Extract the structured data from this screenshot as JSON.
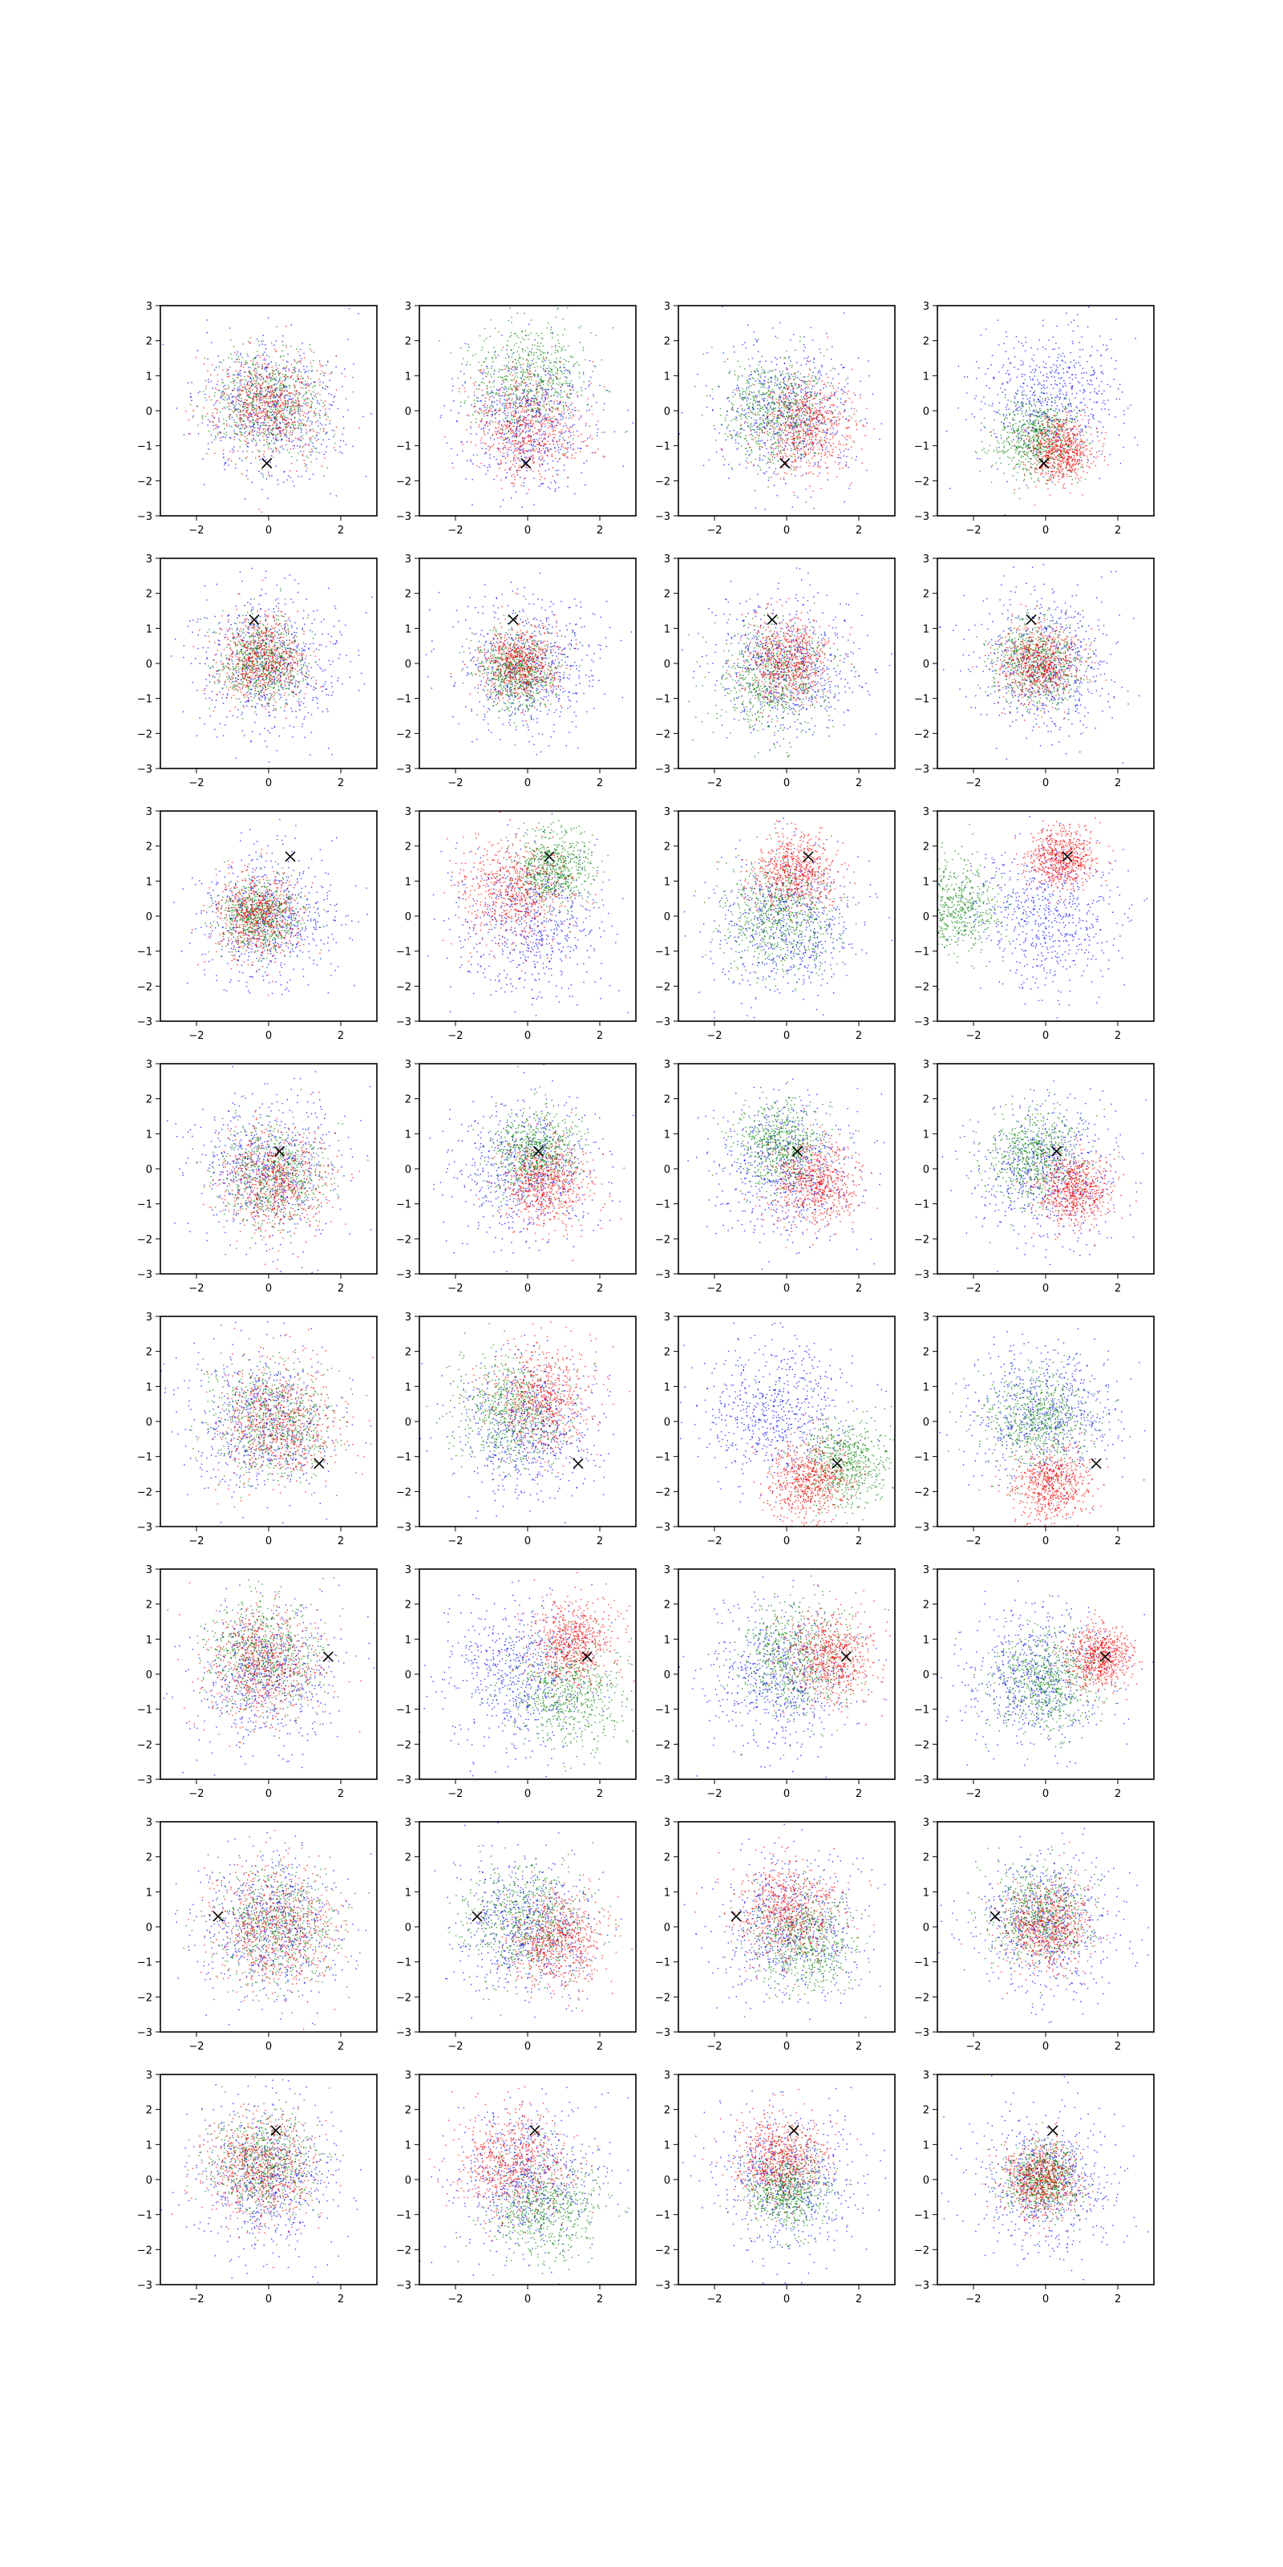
{
  "colors": {
    "series_1": "#ff0000",
    "series_2": "#008000",
    "series_3": "#0000ff",
    "marker": "#000000"
  },
  "chart_data": {
    "type": "scatter",
    "layout": "8 rows x 4 columns of scatter panels",
    "xlim": [
      -3,
      3
    ],
    "ylim": [
      -3,
      3
    ],
    "x_ticks": [
      -2,
      0,
      2
    ],
    "y_ticks": [
      -3,
      -2,
      -1,
      0,
      1,
      2,
      3
    ],
    "x_tick_labels": [
      "−2",
      "0",
      "2"
    ],
    "y_tick_labels": [
      "−3",
      "−2",
      "−1",
      "0",
      "1",
      "2",
      "3"
    ],
    "grid": false,
    "legend": "none",
    "marker_symbol": "x",
    "rows": [
      {
        "marker": [
          -0.05,
          -1.5
        ],
        "panels": [
          {
            "red": {
              "center": [
                0,
                0.2
              ],
              "spread": 0.75
            },
            "green": {
              "center": [
                0,
                0.3
              ],
              "spread": 0.75
            },
            "blue": {
              "center": [
                0,
                0
              ],
              "spread": 1
            }
          },
          {
            "red": {
              "center": [
                0,
                -0.4
              ],
              "spread": 0.75
            },
            "green": {
              "center": [
                0,
                0.9
              ],
              "spread": 0.8
            },
            "blue": {
              "center": [
                0,
                -0.3
              ],
              "spread": 0.95
            }
          },
          {
            "red": {
              "center": [
                0.5,
                -0.4
              ],
              "spread": 0.7
            },
            "green": {
              "center": [
                -0.3,
                0
              ],
              "spread": 0.75
            },
            "blue": {
              "center": [
                0,
                0
              ],
              "spread": 1
            }
          },
          {
            "red": {
              "center": [
                0.4,
                -1.1
              ],
              "spread": 0.45
            },
            "green": {
              "center": [
                -0.3,
                -0.8
              ],
              "spread": 0.55
            },
            "blue": {
              "center": [
                0,
                0.4
              ],
              "spread": 1
            }
          }
        ]
      },
      {
        "marker": [
          -0.4,
          1.25
        ],
        "panels": [
          {
            "red": {
              "center": [
                -0.2,
                0.1
              ],
              "spread": 0.6
            },
            "green": {
              "center": [
                -0.2,
                0.1
              ],
              "spread": 0.6
            },
            "blue": {
              "center": [
                0,
                0
              ],
              "spread": 1
            }
          },
          {
            "red": {
              "center": [
                -0.2,
                0
              ],
              "spread": 0.5
            },
            "green": {
              "center": [
                -0.3,
                -0.2
              ],
              "spread": 0.55
            },
            "blue": {
              "center": [
                0,
                0
              ],
              "spread": 1
            }
          },
          {
            "red": {
              "center": [
                0,
                0.1
              ],
              "spread": 0.6
            },
            "green": {
              "center": [
                -0.4,
                -0.4
              ],
              "spread": 0.8
            },
            "blue": {
              "center": [
                0,
                0
              ],
              "spread": 1
            }
          },
          {
            "red": {
              "center": [
                -0.2,
                0
              ],
              "spread": 0.55
            },
            "green": {
              "center": [
                -0.2,
                0
              ],
              "spread": 0.6
            },
            "blue": {
              "center": [
                0,
                0
              ],
              "spread": 1
            }
          }
        ]
      },
      {
        "marker": [
          0.6,
          1.7
        ],
        "panels": [
          {
            "red": {
              "center": [
                -0.3,
                0
              ],
              "spread": 0.6
            },
            "green": {
              "center": [
                -0.3,
                0.1
              ],
              "spread": 0.55
            },
            "blue": {
              "center": [
                0,
                0
              ],
              "spread": 1
            }
          },
          {
            "red": {
              "center": [
                -0.4,
                0.7
              ],
              "spread": 0.75
            },
            "green": {
              "center": [
                0.7,
                1.4
              ],
              "spread": 0.55
            },
            "blue": {
              "center": [
                0,
                -0.2
              ],
              "spread": 1
            }
          },
          {
            "red": {
              "center": [
                0.2,
                1.3
              ],
              "spread": 0.55
            },
            "green": {
              "center": [
                -0.2,
                0
              ],
              "spread": 0.8
            },
            "blue": {
              "center": [
                0,
                -0.2
              ],
              "spread": 1
            }
          },
          {
            "red": {
              "center": [
                0.4,
                1.7
              ],
              "spread": 0.45
            },
            "green": {
              "center": [
                -2.6,
                0.2
              ],
              "spread": 0.65
            },
            "blue": {
              "center": [
                0,
                0
              ],
              "spread": 1
            }
          }
        ]
      },
      {
        "marker": [
          0.3,
          0.5
        ],
        "panels": [
          {
            "red": {
              "center": [
                0.1,
                -0.3
              ],
              "spread": 0.75
            },
            "green": {
              "center": [
                0.1,
                -0.2
              ],
              "spread": 0.75
            },
            "blue": {
              "center": [
                0,
                0
              ],
              "spread": 1
            }
          },
          {
            "red": {
              "center": [
                0.5,
                -0.4
              ],
              "spread": 0.6
            },
            "green": {
              "center": [
                0.2,
                0.5
              ],
              "spread": 0.6
            },
            "blue": {
              "center": [
                0,
                0
              ],
              "spread": 1
            }
          },
          {
            "red": {
              "center": [
                0.8,
                -0.4
              ],
              "spread": 0.6
            },
            "green": {
              "center": [
                -0.2,
                0.7
              ],
              "spread": 0.65
            },
            "blue": {
              "center": [
                0,
                0
              ],
              "spread": 1
            }
          },
          {
            "red": {
              "center": [
                0.8,
                -0.6
              ],
              "spread": 0.5
            },
            "green": {
              "center": [
                -0.3,
                0.4
              ],
              "spread": 0.65
            },
            "blue": {
              "center": [
                0,
                0
              ],
              "spread": 1
            }
          }
        ]
      },
      {
        "marker": [
          1.4,
          -1.2
        ],
        "panels": [
          {
            "red": {
              "center": [
                0.3,
                0
              ],
              "spread": 0.85
            },
            "green": {
              "center": [
                0.2,
                0
              ],
              "spread": 0.85
            },
            "blue": {
              "center": [
                -0.2,
                0
              ],
              "spread": 1
            }
          },
          {
            "red": {
              "center": [
                0.4,
                0.7
              ],
              "spread": 0.75
            },
            "green": {
              "center": [
                -0.5,
                0.3
              ],
              "spread": 0.8
            },
            "blue": {
              "center": [
                0,
                -0.2
              ],
              "spread": 1
            }
          },
          {
            "red": {
              "center": [
                0.6,
                -1.7
              ],
              "spread": 0.55
            },
            "green": {
              "center": [
                1.6,
                -1.2
              ],
              "spread": 0.65
            },
            "blue": {
              "center": [
                -0.3,
                0.3
              ],
              "spread": 1
            }
          },
          {
            "red": {
              "center": [
                0.2,
                -1.8
              ],
              "spread": 0.5
            },
            "green": {
              "center": [
                -0.2,
                0.1
              ],
              "spread": 0.75
            },
            "blue": {
              "center": [
                0,
                0.2
              ],
              "spread": 1
            }
          }
        ]
      },
      {
        "marker": [
          1.65,
          0.5
        ],
        "panels": [
          {
            "red": {
              "center": [
                -0.2,
                0.3
              ],
              "spread": 0.8
            },
            "green": {
              "center": [
                -0.2,
                0.6
              ],
              "spread": 0.8
            },
            "blue": {
              "center": [
                0,
                0
              ],
              "spread": 1
            }
          },
          {
            "red": {
              "center": [
                1.2,
                0.9
              ],
              "spread": 0.6
            },
            "green": {
              "center": [
                1.1,
                -0.5
              ],
              "spread": 0.8
            },
            "blue": {
              "center": [
                -0.3,
                0
              ],
              "spread": 1
            }
          },
          {
            "red": {
              "center": [
                1.2,
                0.5
              ],
              "spread": 0.6
            },
            "green": {
              "center": [
                0.2,
                0.5
              ],
              "spread": 0.8
            },
            "blue": {
              "center": [
                -0.2,
                0
              ],
              "spread": 1
            }
          },
          {
            "red": {
              "center": [
                1.5,
                0.5
              ],
              "spread": 0.45
            },
            "green": {
              "center": [
                0,
                -0.2
              ],
              "spread": 0.75
            },
            "blue": {
              "center": [
                -0.2,
                0
              ],
              "spread": 1
            }
          }
        ]
      },
      {
        "marker": [
          -1.4,
          0.3
        ],
        "panels": [
          {
            "red": {
              "center": [
                0.2,
                0
              ],
              "spread": 0.85
            },
            "green": {
              "center": [
                0.2,
                0
              ],
              "spread": 0.85
            },
            "blue": {
              "center": [
                0,
                0
              ],
              "spread": 1
            }
          },
          {
            "red": {
              "center": [
                0.8,
                -0.4
              ],
              "spread": 0.65
            },
            "green": {
              "center": [
                0,
                0.2
              ],
              "spread": 0.85
            },
            "blue": {
              "center": [
                0,
                0
              ],
              "spread": 1
            }
          },
          {
            "red": {
              "center": [
                0,
                0.5
              ],
              "spread": 0.7
            },
            "green": {
              "center": [
                0.5,
                -0.4
              ],
              "spread": 0.75
            },
            "blue": {
              "center": [
                0,
                0
              ],
              "spread": 1
            }
          },
          {
            "red": {
              "center": [
                0,
                0
              ],
              "spread": 0.6
            },
            "green": {
              "center": [
                -0.2,
                0.3
              ],
              "spread": 0.7
            },
            "blue": {
              "center": [
                0,
                0
              ],
              "spread": 1
            }
          }
        ]
      },
      {
        "marker": [
          0.2,
          1.4
        ],
        "panels": [
          {
            "red": {
              "center": [
                -0.3,
                0.3
              ],
              "spread": 0.75
            },
            "green": {
              "center": [
                -0.2,
                0.5
              ],
              "spread": 0.75
            },
            "blue": {
              "center": [
                0,
                0
              ],
              "spread": 1
            }
          },
          {
            "red": {
              "center": [
                -0.4,
                0.5
              ],
              "spread": 0.75
            },
            "green": {
              "center": [
                0.5,
                -0.8
              ],
              "spread": 0.75
            },
            "blue": {
              "center": [
                0,
                0
              ],
              "spread": 1
            }
          },
          {
            "red": {
              "center": [
                -0.2,
                0.6
              ],
              "spread": 0.6
            },
            "green": {
              "center": [
                0,
                -0.3
              ],
              "spread": 0.55
            },
            "blue": {
              "center": [
                0,
                0
              ],
              "spread": 1
            }
          },
          {
            "red": {
              "center": [
                -0.2,
                0
              ],
              "spread": 0.55
            },
            "green": {
              "center": [
                -0.1,
                0
              ],
              "spread": 0.5
            },
            "blue": {
              "center": [
                0,
                0
              ],
              "spread": 1
            }
          }
        ]
      }
    ]
  }
}
